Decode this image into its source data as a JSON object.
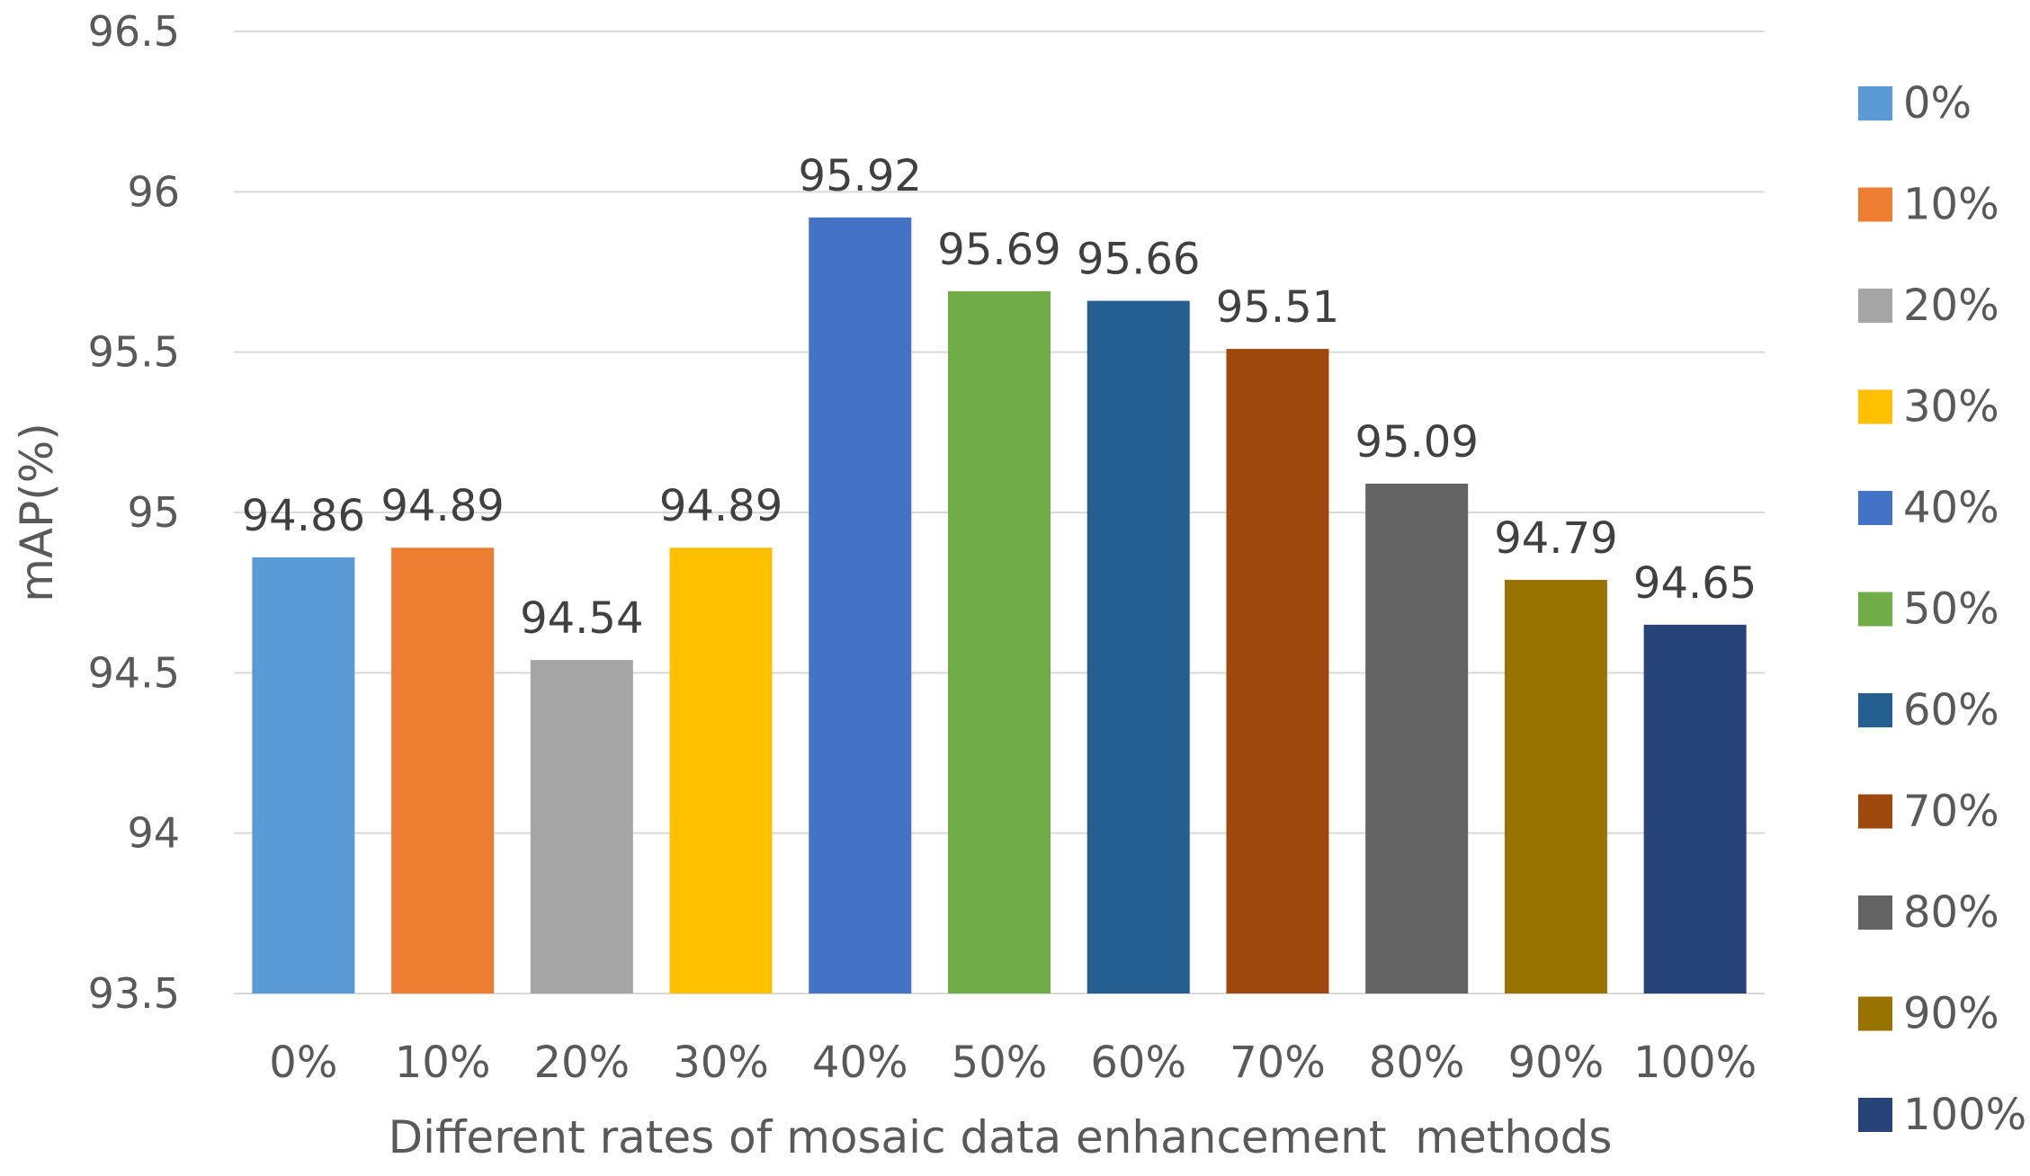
{
  "chart_data": {
    "type": "bar",
    "title": "",
    "xlabel": "Different rates of mosaic data enhancement  methods",
    "ylabel": "mAP(%)",
    "ylim": [
      93.5,
      96.5
    ],
    "yticks": [
      "93.5",
      "94",
      "94.5",
      "95",
      "95.5",
      "96",
      "96.5"
    ],
    "grid": true,
    "legend_position": "right",
    "categories": [
      "0%",
      "10%",
      "20%",
      "30%",
      "40%",
      "50%",
      "60%",
      "70%",
      "80%",
      "90%",
      "100%"
    ],
    "values": [
      94.86,
      94.89,
      94.54,
      94.89,
      95.92,
      95.69,
      95.66,
      95.51,
      95.09,
      94.79,
      94.65
    ],
    "value_labels": [
      "94.86",
      "94.89",
      "94.54",
      "94.89",
      "95.92",
      "95.69",
      "95.66",
      "95.51",
      "95.09",
      "94.79",
      "94.65"
    ],
    "colors": [
      "#5B9BD5",
      "#ED7D31",
      "#A5A5A5",
      "#FFC000",
      "#4472C4",
      "#70AD47",
      "#255E91",
      "#9E480E",
      "#636363",
      "#997300",
      "#264478"
    ]
  }
}
